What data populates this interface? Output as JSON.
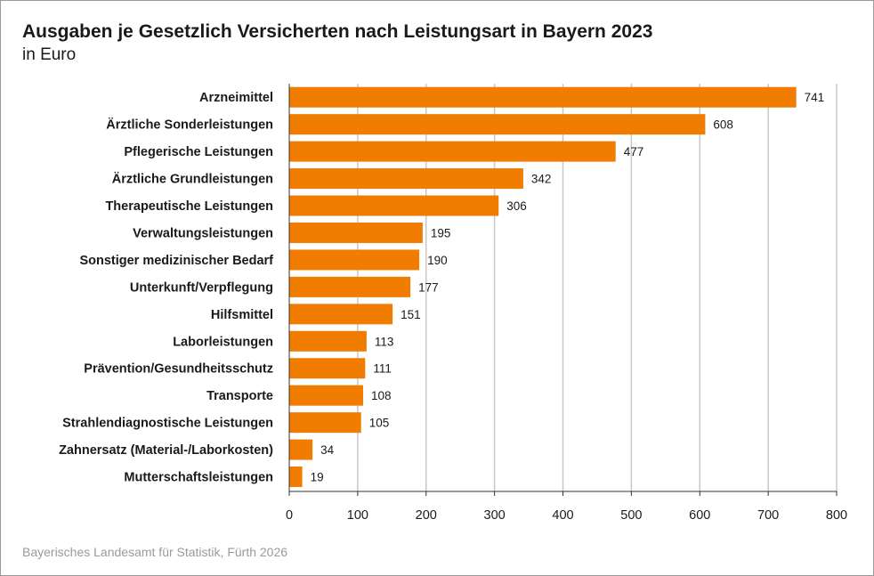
{
  "title": "Ausgaben je Gesetzlich Versicherten nach Leistungsart in Bayern 2023",
  "subtitle": "in Euro",
  "source": "Bayerisches Landesamt für Statistik, Fürth 2026",
  "colors": {
    "bar": "#f07d00",
    "grid": "#c8c8c8",
    "axis": "#333333"
  },
  "chart_data": {
    "type": "bar",
    "orientation": "horizontal",
    "title": "Ausgaben je Gesetzlich Versicherten nach Leistungsart in Bayern 2023",
    "subtitle": "in Euro",
    "categories": [
      "Arzneimittel",
      "Ärztliche Sonderleistungen",
      "Pflegerische Leistungen",
      "Ärztliche Grundleistungen",
      "Therapeutische Leistungen",
      "Verwaltungsleistungen",
      "Sonstiger medizinischer Bedarf",
      "Unterkunft/Verpflegung",
      "Hilfsmittel",
      "Laborleistungen",
      "Prävention/Gesundheitsschutz",
      "Transporte",
      "Strahlendiagnostische Leistungen",
      "Zahnersatz (Material-/Laborkosten)",
      "Mutterschaftsleistungen"
    ],
    "values": [
      741,
      608,
      477,
      342,
      306,
      195,
      190,
      177,
      151,
      113,
      111,
      108,
      105,
      34,
      19
    ],
    "xlim": [
      0,
      800
    ],
    "xticks": [
      0,
      100,
      200,
      300,
      400,
      500,
      600,
      700,
      800
    ],
    "grid": true,
    "data_labels": true
  }
}
